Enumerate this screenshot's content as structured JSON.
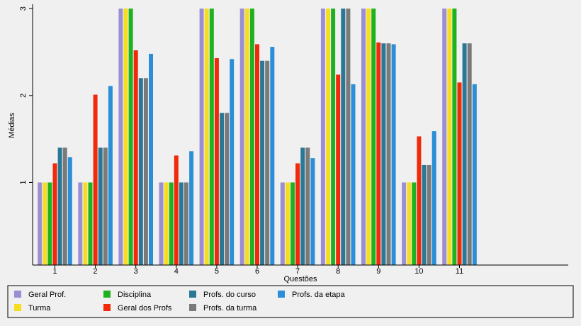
{
  "chart_data": {
    "type": "bar",
    "xlabel": "Questões",
    "ylabel": "Médias",
    "ylim": [
      0.05,
      3.05
    ],
    "yticks": [
      1,
      2,
      3
    ],
    "categories": [
      "1",
      "2",
      "3",
      "4",
      "5",
      "6",
      "7",
      "8",
      "9",
      "10",
      "11"
    ],
    "legend_position": "bottom",
    "series": [
      {
        "name": "Geral Prof.",
        "color": "#9b8fd3",
        "values": [
          1,
          1,
          3,
          1,
          3,
          3,
          1,
          3,
          3,
          1,
          3
        ]
      },
      {
        "name": "Turma",
        "color": "#f7dd1f",
        "values": [
          1,
          1,
          3,
          1,
          3,
          3,
          1,
          3,
          3,
          1,
          3
        ]
      },
      {
        "name": "Disciplina",
        "color": "#1fb21f",
        "values": [
          1,
          1,
          3,
          1,
          3,
          3,
          1,
          3,
          3,
          1,
          3
        ]
      },
      {
        "name": "Geral dos Profs",
        "color": "#f02a0a",
        "values": [
          1.22,
          2.01,
          2.52,
          1.31,
          2.43,
          2.59,
          1.22,
          2.24,
          2.61,
          1.53,
          2.15
        ]
      },
      {
        "name": "Profs. do curso",
        "color": "#2a7896",
        "values": [
          1.4,
          1.4,
          2.2,
          1.0,
          1.8,
          2.4,
          1.4,
          3.0,
          2.6,
          1.2,
          2.6
        ]
      },
      {
        "name": "Profs. da turma",
        "color": "#7a7a7a",
        "values": [
          1.4,
          1.4,
          2.2,
          1.0,
          1.8,
          2.4,
          1.4,
          3.0,
          2.6,
          1.2,
          2.6
        ]
      },
      {
        "name": "Profs. da etapa",
        "color": "#2a8fd6",
        "values": [
          1.29,
          2.11,
          2.48,
          1.36,
          2.42,
          2.56,
          1.28,
          2.13,
          2.59,
          1.59,
          2.13
        ]
      }
    ]
  }
}
